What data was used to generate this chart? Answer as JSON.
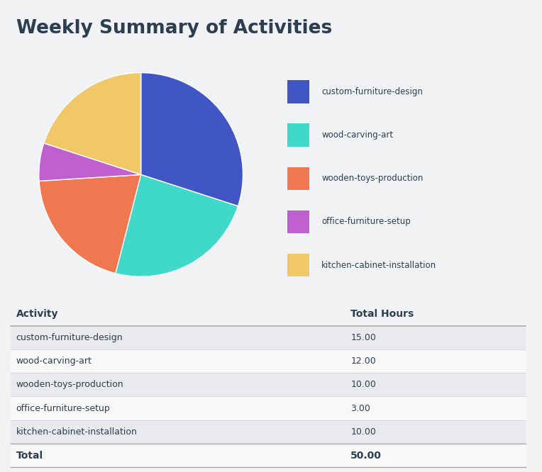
{
  "title": "Weekly Summary of Activities",
  "title_color": "#2d3e50",
  "background_color": "#f0f2f4",
  "pie_data": [
    15,
    12,
    10,
    3,
    10
  ],
  "pie_labels": [
    "custom-furniture-design",
    "wood-carving-art",
    "wooden-toys-production",
    "office-furniture-setup",
    "kitchen-cabinet-installation"
  ],
  "pie_colors": [
    "#4056c4",
    "#40d8c8",
    "#f07850",
    "#c060d0",
    "#f0c868"
  ],
  "table_activities": [
    "custom-furniture-design",
    "wood-carving-art",
    "wooden-toys-production",
    "office-furniture-setup",
    "kitchen-cabinet-installation"
  ],
  "table_hours": [
    "15.00",
    "12.00",
    "10.00",
    "3.00",
    "10.00"
  ],
  "total_hours": "50.00",
  "col_header_activity": "Activity",
  "col_header_hours": "Total Hours",
  "row_bg_odd": "#e8eaed",
  "row_bg_even": "#f8f8f8",
  "text_color_dark": "#2d3e50",
  "line_color_header": "#aaaaaa",
  "line_color_row": "#cccccc"
}
